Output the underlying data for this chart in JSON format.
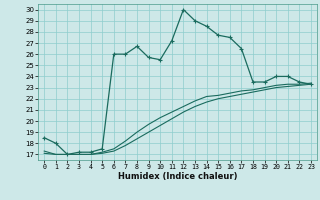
{
  "xlabel": "Humidex (Indice chaleur)",
  "bg_color": "#cde8e8",
  "line_color": "#1a6b5e",
  "grid_color": "#8ecece",
  "xlim": [
    -0.5,
    23.5
  ],
  "ylim": [
    16.5,
    30.5
  ],
  "xticks": [
    0,
    1,
    2,
    3,
    4,
    5,
    6,
    7,
    8,
    9,
    10,
    11,
    12,
    13,
    14,
    15,
    16,
    17,
    18,
    19,
    20,
    21,
    22,
    23
  ],
  "yticks": [
    17,
    18,
    19,
    20,
    21,
    22,
    23,
    24,
    25,
    26,
    27,
    28,
    29,
    30
  ],
  "curve1_x": [
    0,
    1,
    2,
    3,
    4,
    5,
    6,
    7,
    8,
    9,
    10,
    11,
    12,
    13,
    14,
    15,
    16,
    17,
    18,
    19,
    20,
    21,
    22,
    23
  ],
  "curve1_y": [
    18.5,
    18.0,
    17.0,
    17.2,
    17.2,
    17.5,
    26.0,
    26.0,
    26.7,
    25.7,
    25.5,
    27.2,
    30.0,
    29.0,
    28.5,
    27.7,
    27.5,
    26.5,
    23.5,
    23.5,
    24.0,
    24.0,
    23.5,
    23.3
  ],
  "curve1_marker_x": [
    0,
    1,
    2,
    3,
    4,
    5,
    6,
    7,
    8,
    9,
    10,
    11,
    12,
    13,
    14,
    15,
    16,
    17,
    18,
    19,
    20,
    21,
    22,
    23
  ],
  "curve1_marker_y": [
    18.5,
    18.0,
    17.0,
    17.2,
    17.2,
    17.5,
    26.0,
    26.0,
    26.7,
    25.7,
    25.5,
    27.2,
    30.0,
    29.0,
    28.5,
    27.7,
    27.5,
    26.5,
    23.5,
    23.5,
    24.0,
    24.0,
    23.5,
    23.3
  ],
  "curve2_x": [
    0,
    1,
    2,
    3,
    4,
    5,
    6,
    7,
    8,
    9,
    10,
    11,
    12,
    13,
    14,
    15,
    16,
    17,
    18,
    19,
    20,
    21,
    22,
    23
  ],
  "curve2_y": [
    17.3,
    17.0,
    17.0,
    17.0,
    17.0,
    17.2,
    17.5,
    18.2,
    19.0,
    19.7,
    20.3,
    20.8,
    21.3,
    21.8,
    22.2,
    22.3,
    22.5,
    22.7,
    22.8,
    23.0,
    23.2,
    23.3,
    23.3,
    23.4
  ],
  "curve3_x": [
    0,
    1,
    2,
    3,
    4,
    5,
    6,
    7,
    8,
    9,
    10,
    11,
    12,
    13,
    14,
    15,
    16,
    17,
    18,
    19,
    20,
    21,
    22,
    23
  ],
  "curve3_y": [
    17.1,
    17.0,
    17.0,
    17.0,
    17.0,
    17.1,
    17.3,
    17.8,
    18.4,
    19.0,
    19.6,
    20.2,
    20.8,
    21.3,
    21.7,
    22.0,
    22.2,
    22.4,
    22.6,
    22.8,
    23.0,
    23.1,
    23.2,
    23.3
  ]
}
